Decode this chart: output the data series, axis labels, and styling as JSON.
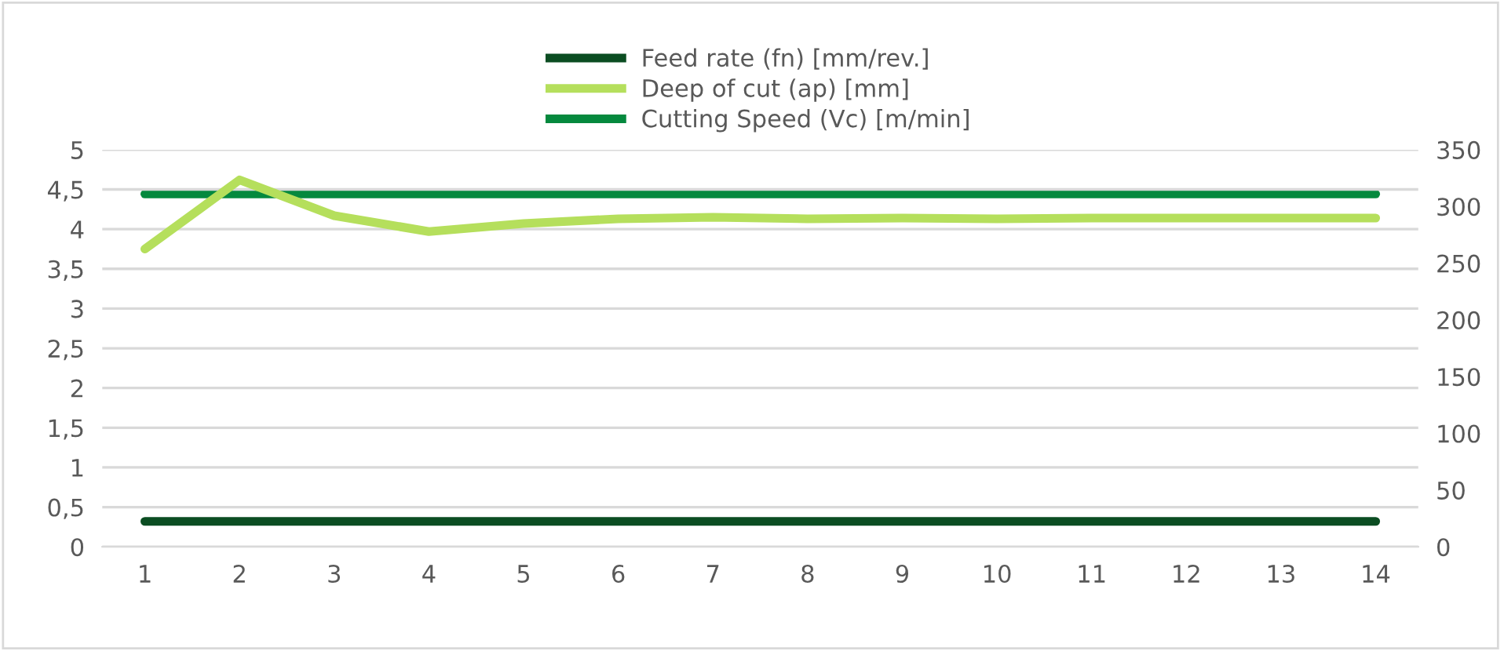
{
  "chart_data": {
    "type": "line",
    "categories": [
      "1",
      "2",
      "3",
      "4",
      "5",
      "6",
      "7",
      "8",
      "9",
      "10",
      "11",
      "12",
      "13",
      "14"
    ],
    "series": [
      {
        "name": "Feed rate (fn) [mm/rev.]",
        "color": "#0b4d22",
        "values": [
          0.32,
          0.32,
          0.32,
          0.32,
          0.32,
          0.32,
          0.32,
          0.32,
          0.32,
          0.32,
          0.32,
          0.32,
          0.32,
          0.32
        ]
      },
      {
        "name": "Deep of cut (ap) [mm]",
        "color": "#b5df5c",
        "values": [
          3.75,
          4.62,
          4.17,
          3.97,
          4.07,
          4.13,
          4.15,
          4.13,
          4.14,
          4.13,
          4.14,
          4.14,
          4.14,
          4.14
        ]
      },
      {
        "name": "Cutting Speed (Vc) [m/min]",
        "color": "#05893e",
        "axis": "y2",
        "values": [
          311,
          311,
          311,
          311,
          311,
          311,
          311,
          311,
          311,
          311,
          311,
          311,
          311,
          311
        ]
      }
    ],
    "ylim": [
      0,
      5
    ],
    "yticks": [
      0,
      {
        "value": 0.5,
        "label": "0,5"
      },
      1,
      {
        "value": 1.5,
        "label": "1,5"
      },
      2,
      {
        "value": 2.5,
        "label": "2,5"
      },
      3,
      {
        "value": 3.5,
        "label": "3,5"
      },
      4,
      {
        "value": 4.5,
        "label": "4,5"
      },
      5
    ],
    "y2lim": [
      0,
      350
    ],
    "y2ticks": [
      0,
      50,
      100,
      150,
      200,
      250,
      300,
      350
    ],
    "grid": "y",
    "legend": "top",
    "marker": "none",
    "line_style": "solid"
  }
}
